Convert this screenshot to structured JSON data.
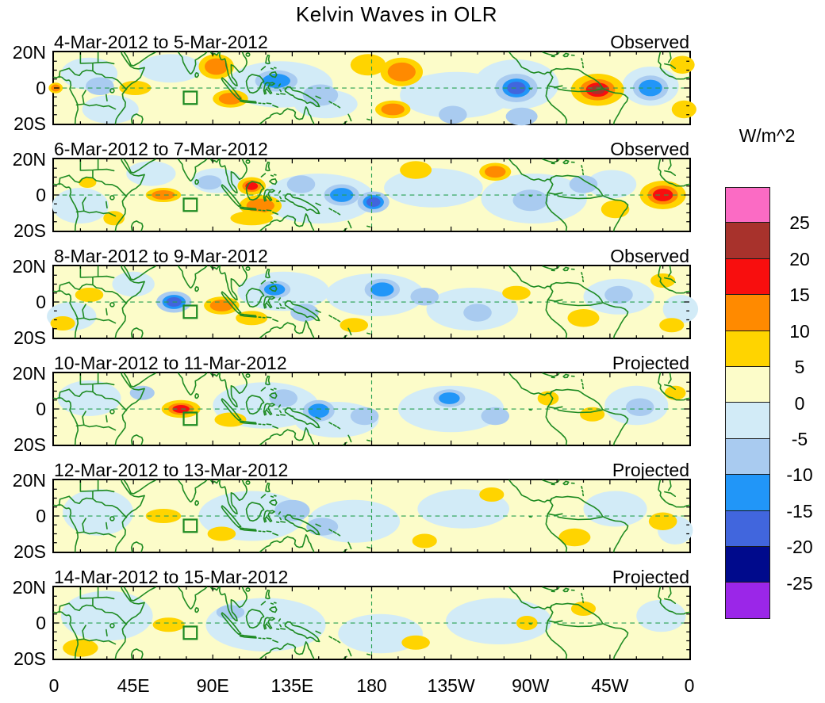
{
  "chart_data": {
    "type": "heatmap",
    "subtype": "filled_contour_longitude_latitude_small_multiples",
    "title": "Kelvin Waves in OLR",
    "units": "W/m^2",
    "contour_interval": 5,
    "lon_range": [
      0,
      360
    ],
    "lat_range": [
      -20,
      20
    ],
    "x_axis": {
      "tick_lons": [
        0,
        45,
        90,
        135,
        180,
        225,
        270,
        315,
        360
      ],
      "tick_labels": [
        "0",
        "45E",
        "90E",
        "135E",
        "180",
        "135W",
        "90W",
        "45W",
        "0"
      ],
      "minor_tick_deg": 15
    },
    "y_axis": {
      "tick_lats": [
        20,
        0,
        -20
      ],
      "tick_labels": [
        "20N",
        "0",
        "20S"
      ],
      "minor_tick_deg": 5
    },
    "colorbar": {
      "unit_label": "W/m^2",
      "tick_labels": [
        "25",
        "20",
        "15",
        "10",
        "5",
        "0",
        "-5",
        "-10",
        "-15",
        "-20",
        "-25"
      ],
      "colors_top_to_bottom": [
        "#FB6BC4",
        "#A8322C",
        "#F80E0E",
        "#FF8A00",
        "#FFD400",
        "#FCFCC9",
        "#D2EBF7",
        "#A9CBF0",
        "#2196F8",
        "#4166DD",
        "#000A8C",
        "#9B26E8"
      ]
    },
    "style": {
      "positive_levels": [
        "#FFD400",
        "#FF8A00",
        "#F80E0E",
        "#A8322C",
        "#FB6BC4"
      ],
      "negative_levels": [
        "#A9CBF0",
        "#2196F8",
        "#4166DD",
        "#000A8C",
        "#9B26E8"
      ],
      "weak_positive": "#FCFCC9",
      "weak_negative": "#D2EBF7",
      "coast_color": "#1E8B22",
      "reference_line_color": "#27A050"
    },
    "map_overlays": {
      "target_box_region": {
        "lon_min": 73.5,
        "lon_max": 81,
        "lat_min": -9,
        "lat_max": -2
      },
      "equator_line": "dashed horizontal line at 0 latitude",
      "dateline_line": "dashed vertical line at 180 longitude"
    },
    "anomaly_format": [
      "lon_deg_east",
      "lat_deg_north",
      "radius_lon_deg",
      "radius_lat_deg",
      "peak_w_m2"
    ],
    "panels": [
      {
        "date_range": "4-Mar-2012 to 5-Mar-2012",
        "status": "Observed",
        "broad_weak_regions": [
          [
            20,
            8,
            16,
            9,
            -4
          ],
          [
            32,
            -12,
            16,
            8,
            -4
          ],
          [
            66,
            11,
            18,
            8,
            -4
          ],
          [
            128,
            2,
            30,
            13,
            -4
          ],
          [
            154,
            -9,
            18,
            8,
            -4
          ],
          [
            228,
            -4,
            32,
            13,
            -4
          ],
          [
            262,
            2,
            24,
            14,
            -4
          ],
          [
            338,
            1,
            16,
            11,
            -4
          ]
        ],
        "anomalies": [
          [
            1,
            0,
            4,
            3,
            11
          ],
          [
            26,
            1,
            8,
            5,
            -8
          ],
          [
            46,
            0,
            9,
            4,
            9
          ],
          [
            92,
            12,
            10,
            7,
            13
          ],
          [
            100,
            -6,
            10,
            5,
            13
          ],
          [
            126,
            4,
            12,
            6,
            -11
          ],
          [
            151,
            -4,
            10,
            6,
            -9
          ],
          [
            178,
            13,
            10,
            6,
            9
          ],
          [
            197,
            9,
            12,
            8,
            14
          ],
          [
            192,
            -12,
            10,
            5,
            11
          ],
          [
            226,
            -15,
            8,
            5,
            -8
          ],
          [
            262,
            0,
            12,
            8,
            -18
          ],
          [
            265,
            -16,
            9,
            5,
            -9
          ],
          [
            308,
            -1,
            15,
            9,
            21
          ],
          [
            338,
            0,
            10,
            7,
            -13
          ],
          [
            356,
            13,
            7,
            5,
            8
          ],
          [
            357,
            -12,
            7,
            5,
            9
          ]
        ]
      },
      {
        "date_range": "6-Mar-2012 to 7-Mar-2012",
        "status": "Observed",
        "broad_weak_regions": [
          [
            15,
            -6,
            16,
            10,
            -4
          ],
          [
            55,
            12,
            14,
            7,
            -4
          ],
          [
            92,
            8,
            14,
            7,
            -4
          ],
          [
            150,
            -2,
            32,
            14,
            -4
          ],
          [
            215,
            4,
            28,
            11,
            -4
          ],
          [
            272,
            -2,
            30,
            14,
            -4
          ],
          [
            316,
            6,
            14,
            8,
            -4
          ]
        ],
        "anomalies": [
          [
            19,
            7,
            5,
            3,
            9
          ],
          [
            34,
            -13,
            6,
            4,
            8
          ],
          [
            62,
            0,
            10,
            4,
            13
          ],
          [
            88,
            7,
            7,
            4,
            -8
          ],
          [
            112,
            5,
            8,
            5,
            16
          ],
          [
            117,
            -6,
            12,
            6,
            11
          ],
          [
            112,
            -13,
            12,
            4,
            9
          ],
          [
            140,
            6,
            8,
            5,
            -8
          ],
          [
            163,
            0,
            10,
            6,
            -13
          ],
          [
            181,
            -4,
            9,
            6,
            -15
          ],
          [
            205,
            14,
            9,
            5,
            9
          ],
          [
            250,
            13,
            9,
            5,
            11
          ],
          [
            270,
            -3,
            10,
            6,
            -9
          ],
          [
            300,
            6,
            8,
            5,
            -8
          ],
          [
            318,
            -8,
            8,
            5,
            8
          ],
          [
            345,
            0,
            13,
            8,
            19
          ]
        ]
      },
      {
        "date_range": "8-Mar-2012 to 9-Mar-2012",
        "status": "Observed",
        "broad_weak_regions": [
          [
            10,
            -8,
            14,
            8,
            -4
          ],
          [
            45,
            10,
            12,
            7,
            -4
          ],
          [
            130,
            6,
            26,
            11,
            -4
          ],
          [
            182,
            4,
            28,
            12,
            -4
          ],
          [
            237,
            -4,
            26,
            12,
            -4
          ],
          [
            320,
            3,
            20,
            10,
            -4
          ],
          [
            355,
            -4,
            10,
            8,
            -4
          ]
        ],
        "anomalies": [
          [
            20,
            4,
            8,
            4,
            9
          ],
          [
            5,
            -12,
            7,
            4,
            8
          ],
          [
            68,
            0,
            10,
            6,
            -17
          ],
          [
            95,
            -2,
            10,
            5,
            14
          ],
          [
            112,
            -9,
            9,
            4,
            9
          ],
          [
            125,
            7,
            9,
            5,
            -11
          ],
          [
            142,
            -6,
            8,
            5,
            -9
          ],
          [
            186,
            7,
            10,
            6,
            -11
          ],
          [
            170,
            -13,
            8,
            4,
            8
          ],
          [
            210,
            3,
            8,
            5,
            -8
          ],
          [
            240,
            -6,
            8,
            5,
            -9
          ],
          [
            262,
            5,
            8,
            4,
            9
          ],
          [
            300,
            -9,
            9,
            5,
            9
          ],
          [
            320,
            4,
            8,
            5,
            -8
          ],
          [
            350,
            -13,
            7,
            4,
            8
          ],
          [
            345,
            12,
            7,
            4,
            8
          ]
        ]
      },
      {
        "date_range": "10-Mar-2012 to 11-Mar-2012",
        "status": "Projected",
        "broad_weak_regions": [
          [
            20,
            6,
            18,
            10,
            -4
          ],
          [
            120,
            2,
            30,
            13,
            -4
          ],
          [
            160,
            -6,
            24,
            10,
            -4
          ],
          [
            225,
            0,
            30,
            13,
            -4
          ],
          [
            330,
            2,
            18,
            11,
            -4
          ]
        ],
        "anomalies": [
          [
            72,
            0,
            11,
            5,
            17
          ],
          [
            100,
            -6,
            9,
            4,
            9
          ],
          [
            50,
            9,
            7,
            4,
            -8
          ],
          [
            130,
            6,
            8,
            5,
            -9
          ],
          [
            150,
            -1,
            9,
            6,
            -11
          ],
          [
            176,
            -4,
            8,
            5,
            -8
          ],
          [
            224,
            6,
            9,
            5,
            -11
          ],
          [
            250,
            -4,
            8,
            5,
            -8
          ],
          [
            280,
            6,
            6,
            4,
            8
          ],
          [
            305,
            -3,
            7,
            4,
            9
          ],
          [
            332,
            1,
            8,
            5,
            -8
          ],
          [
            352,
            9,
            6,
            4,
            8
          ]
        ]
      },
      {
        "date_range": "12-Mar-2012 to 13-Mar-2012",
        "status": "Projected",
        "broad_weak_regions": [
          [
            25,
            2,
            20,
            13,
            -4
          ],
          [
            112,
            0,
            30,
            14,
            -4
          ],
          [
            170,
            -3,
            26,
            12,
            -4
          ],
          [
            232,
            4,
            26,
            11,
            -4
          ],
          [
            318,
            4,
            18,
            10,
            -4
          ],
          [
            352,
            -8,
            10,
            8,
            -4
          ]
        ],
        "anomalies": [
          [
            62,
            0,
            10,
            4,
            9
          ],
          [
            95,
            -10,
            8,
            4,
            8
          ],
          [
            135,
            3,
            10,
            6,
            -8
          ],
          [
            152,
            -6,
            9,
            5,
            -8
          ],
          [
            248,
            12,
            7,
            4,
            8
          ],
          [
            295,
            -12,
            9,
            5,
            9
          ],
          [
            345,
            -3,
            8,
            5,
            8
          ],
          [
            210,
            -14,
            7,
            4,
            8
          ]
        ]
      },
      {
        "date_range": "14-Mar-2012 to 15-Mar-2012",
        "status": "Projected",
        "broad_weak_regions": [
          [
            30,
            4,
            26,
            14,
            -4
          ],
          [
            120,
            -1,
            34,
            15,
            -4
          ],
          [
            185,
            -6,
            24,
            11,
            -4
          ],
          [
            252,
            1,
            30,
            13,
            -4
          ],
          [
            344,
            4,
            14,
            9,
            -4
          ]
        ],
        "anomalies": [
          [
            15,
            -14,
            10,
            5,
            9
          ],
          [
            65,
            -1,
            9,
            4,
            8
          ],
          [
            100,
            6,
            8,
            4,
            -8
          ],
          [
            205,
            -11,
            8,
            4,
            8
          ],
          [
            268,
            0,
            6,
            4,
            8
          ],
          [
            300,
            8,
            7,
            4,
            8
          ]
        ]
      }
    ]
  }
}
